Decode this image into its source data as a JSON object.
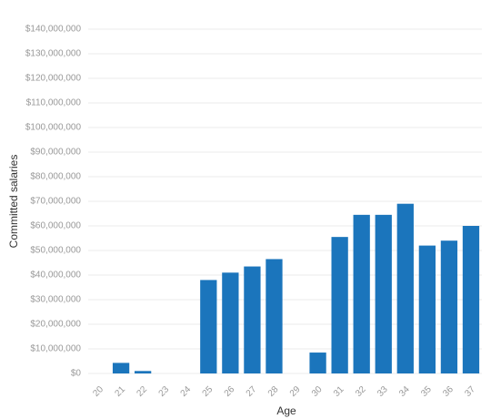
{
  "chart_data": {
    "type": "bar",
    "x_label": "Age",
    "y_label": "Committed salaries",
    "categories": [
      "20",
      "21",
      "22",
      "23",
      "24",
      "25",
      "26",
      "27",
      "28",
      "29",
      "30",
      "31",
      "32",
      "33",
      "34",
      "35",
      "36",
      "37"
    ],
    "values": [
      0,
      4300000,
      1000000,
      0,
      0,
      38000000,
      41000000,
      43500000,
      46500000,
      0,
      8500000,
      55500000,
      64500000,
      64500000,
      69000000,
      52000000,
      54000000,
      60000000
    ],
    "color": "#1b75bc",
    "ylim": [
      0,
      140000000
    ],
    "yticks": [
      {
        "value": 0,
        "label": "$0"
      },
      {
        "value": 10000000,
        "label": "$10,000,000"
      },
      {
        "value": 20000000,
        "label": "$20,000,000"
      },
      {
        "value": 30000000,
        "label": "$30,000,000"
      },
      {
        "value": 40000000,
        "label": "$40,000,000"
      },
      {
        "value": 50000000,
        "label": "$50,000,000"
      },
      {
        "value": 60000000,
        "label": "$60,000,000"
      },
      {
        "value": 70000000,
        "label": "$70,000,000"
      },
      {
        "value": 80000000,
        "label": "$80,000,000"
      },
      {
        "value": 90000000,
        "label": "$90,000,000"
      },
      {
        "value": 100000000,
        "label": "$100,000,000"
      },
      {
        "value": 110000000,
        "label": "$110,000,000"
      },
      {
        "value": 120000000,
        "label": "$120,000,000"
      },
      {
        "value": 130000000,
        "label": "$130,000,000"
      },
      {
        "value": 140000000,
        "label": "$140,000,000"
      }
    ],
    "grid": true
  }
}
